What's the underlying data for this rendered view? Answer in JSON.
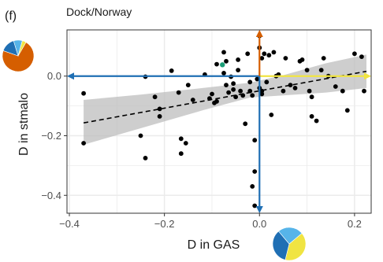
{
  "chart_data": {
    "type": "scatter",
    "panel_label": "(f)",
    "title": "Dock/Norway",
    "xlabel": "D in GAS",
    "ylabel": "D in stmalo",
    "xlim": [
      -0.405,
      0.235
    ],
    "ylim": [
      -0.46,
      0.155
    ],
    "xticks": [
      -0.4,
      -0.2,
      0.0,
      0.2
    ],
    "xtick_labels": [
      "−0.4",
      "−0.2",
      "0.0",
      "0.2"
    ],
    "yticks": [
      -0.4,
      -0.2,
      0.0
    ],
    "ytick_labels": [
      "−0.4",
      "−0.2",
      "0.0"
    ],
    "grid": true,
    "trend": {
      "style": "dashed",
      "line": [
        [
          -0.37,
          -0.157
        ],
        [
          0.225,
          0.016
        ]
      ],
      "band_upper": [
        [
          -0.37,
          -0.08
        ],
        [
          -0.25,
          -0.062
        ],
        [
          -0.12,
          -0.04
        ],
        [
          -0.02,
          -0.022
        ],
        [
          0.05,
          0.003
        ],
        [
          0.14,
          0.043
        ],
        [
          0.225,
          0.072
        ]
      ],
      "band_lower": [
        [
          -0.37,
          -0.23
        ],
        [
          -0.25,
          -0.175
        ],
        [
          -0.12,
          -0.115
        ],
        [
          -0.02,
          -0.072
        ],
        [
          0.05,
          -0.065
        ],
        [
          0.14,
          -0.055
        ],
        [
          0.225,
          -0.04
        ]
      ]
    },
    "points": [
      [
        -0.37,
        -0.058
      ],
      [
        -0.37,
        -0.225
      ],
      [
        -0.24,
        -0.002
      ],
      [
        -0.24,
        -0.275
      ],
      [
        -0.25,
        -0.2
      ],
      [
        -0.22,
        -0.07
      ],
      [
        -0.21,
        -0.11
      ],
      [
        -0.21,
        -0.135
      ],
      [
        -0.185,
        0.018
      ],
      [
        -0.17,
        -0.055
      ],
      [
        -0.165,
        -0.21
      ],
      [
        -0.165,
        -0.26
      ],
      [
        -0.155,
        -0.225
      ],
      [
        -0.15,
        -0.03
      ],
      [
        -0.14,
        -0.08
      ],
      [
        -0.115,
        0.005
      ],
      [
        -0.105,
        -0.075
      ],
      [
        -0.1,
        -0.06
      ],
      [
        -0.095,
        -0.09
      ],
      [
        -0.09,
        0.04
      ],
      [
        -0.09,
        -0.085
      ],
      [
        -0.075,
        0.01
      ],
      [
        -0.07,
        0.05
      ],
      [
        -0.07,
        -0.03
      ],
      [
        -0.065,
        -0.055
      ],
      [
        -0.055,
        -0.025
      ],
      [
        -0.055,
        -0.045
      ],
      [
        -0.05,
        -0.07
      ],
      [
        -0.045,
        0.02
      ],
      [
        -0.045,
        0.055
      ],
      [
        -0.04,
        -0.05
      ],
      [
        -0.035,
        -0.065
      ],
      [
        -0.03,
        -0.16
      ],
      [
        -0.025,
        0.075
      ],
      [
        -0.02,
        -0.02
      ],
      [
        -0.02,
        -0.05
      ],
      [
        -0.015,
        -0.065
      ],
      [
        -0.01,
        -0.215
      ],
      [
        -0.01,
        -0.32
      ],
      [
        -0.01,
        -0.435
      ],
      [
        -0.015,
        -0.37
      ],
      [
        -0.005,
        -0.01
      ],
      [
        0.0,
        0.135
      ],
      [
        0.0,
        0.095
      ],
      [
        0.0,
        -0.04
      ],
      [
        0.005,
        -0.05
      ],
      [
        0.005,
        -0.06
      ],
      [
        0.005,
        0.06
      ],
      [
        0.01,
        0.075
      ],
      [
        0.015,
        -0.02
      ],
      [
        0.02,
        0.07
      ],
      [
        0.025,
        -0.13
      ],
      [
        0.03,
        0.08
      ],
      [
        0.035,
        0.0
      ],
      [
        0.04,
        0.005
      ],
      [
        0.05,
        -0.05
      ],
      [
        0.055,
        0.06
      ],
      [
        0.065,
        -0.03
      ],
      [
        0.075,
        -0.04
      ],
      [
        0.085,
        0.05
      ],
      [
        0.09,
        0.055
      ],
      [
        0.1,
        0.02
      ],
      [
        0.105,
        -0.05
      ],
      [
        0.11,
        -0.07
      ],
      [
        0.11,
        -0.135
      ],
      [
        0.12,
        -0.15
      ],
      [
        0.13,
        0.02
      ],
      [
        0.135,
        0.06
      ],
      [
        0.145,
        0.0
      ],
      [
        0.16,
        -0.035
      ],
      [
        0.175,
        -0.05
      ],
      [
        0.185,
        -0.115
      ],
      [
        0.2,
        0.075
      ],
      [
        0.215,
        0.065
      ],
      [
        0.22,
        -0.05
      ],
      [
        -0.075,
        0.08
      ],
      [
        -0.06,
        -0.002
      ]
    ],
    "highlight_point": {
      "x": -0.078,
      "y": 0.038,
      "color": "#1b9e77"
    },
    "arrows": {
      "left": {
        "from": [
          0.0,
          0.0
        ],
        "to": [
          -0.405,
          0.0
        ],
        "color": "#1f6fb4"
      },
      "right": {
        "from": [
          0.0,
          0.0
        ],
        "to": [
          0.235,
          0.0
        ],
        "color": "#f0e442"
      },
      "up": {
        "from": [
          0.0,
          0.0
        ],
        "to": [
          0.0,
          0.155
        ],
        "color": "#d55e00"
      },
      "down": {
        "from": [
          0.0,
          0.0
        ],
        "to": [
          0.0,
          -0.46
        ],
        "color": "#1f6fb4"
      }
    },
    "pie_left": {
      "slices": [
        {
          "value": 0.72,
          "color": "#d55e00"
        },
        {
          "value": 0.15,
          "color": "#1f6fb4"
        },
        {
          "value": 0.09,
          "color": "#56b4e9"
        },
        {
          "value": 0.04,
          "color": "#f0e442"
        }
      ]
    },
    "pie_bottom": {
      "slices": [
        {
          "value": 0.4,
          "color": "#f0e442"
        },
        {
          "value": 0.35,
          "color": "#1f6fb4"
        },
        {
          "value": 0.25,
          "color": "#56b4e9"
        }
      ]
    },
    "colors": {
      "panel_background": "#ffffff",
      "grid": "#ebebeb",
      "band": "#bdbdbd",
      "points": "#000000",
      "trend_line": "#000000"
    }
  }
}
